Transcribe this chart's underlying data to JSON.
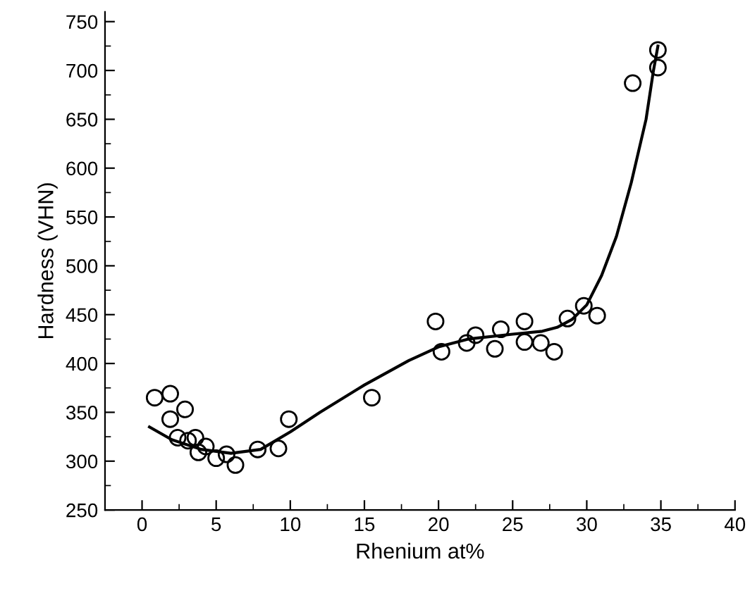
{
  "chart_data": {
    "type": "scatter",
    "xlabel": "Rhenium at%",
    "ylabel": "Hardness (VHN)",
    "xlim": [
      -2.5,
      40
    ],
    "ylim": [
      250,
      760
    ],
    "xticks": [
      0,
      5,
      10,
      15,
      20,
      25,
      30,
      35,
      40
    ],
    "yticks": [
      250,
      300,
      350,
      400,
      450,
      500,
      550,
      600,
      650,
      700,
      750
    ],
    "grid": false,
    "legend": false,
    "marker": "circle",
    "series": [
      {
        "color": "#000000",
        "x": [
          0.85,
          1.9,
          1.9,
          2.9,
          2.4,
          3.1,
          3.6,
          3.8,
          4.3,
          5.0,
          5.7,
          6.3,
          7.8,
          9.2,
          9.9,
          15.5,
          19.8,
          20.2,
          21.9,
          22.5,
          23.8,
          24.2,
          25.8,
          25.8,
          26.9,
          27.8,
          28.7,
          29.8,
          30.7,
          33.1,
          34.8,
          34.8
        ],
        "values": [
          365,
          369,
          343,
          353,
          324,
          321,
          324,
          309,
          315,
          303,
          307,
          296,
          312,
          313,
          343,
          365,
          443,
          412,
          421,
          429,
          415,
          435,
          443,
          422,
          421,
          412,
          446,
          459,
          449,
          687,
          703,
          721
        ]
      },
      {
        "type": "line",
        "color": "#000000",
        "line_style": "solid",
        "marker": "none",
        "x": [
          0.5,
          2,
          4,
          6,
          8,
          10,
          12,
          15,
          18,
          20,
          22,
          25,
          27,
          28,
          29,
          30,
          31,
          32,
          33,
          34,
          34.5,
          34.8
        ],
        "values": [
          335,
          322,
          312,
          308,
          312,
          330,
          350,
          378,
          403,
          417,
          425,
          430,
          433,
          437,
          445,
          460,
          490,
          530,
          585,
          650,
          700,
          725
        ]
      }
    ]
  }
}
